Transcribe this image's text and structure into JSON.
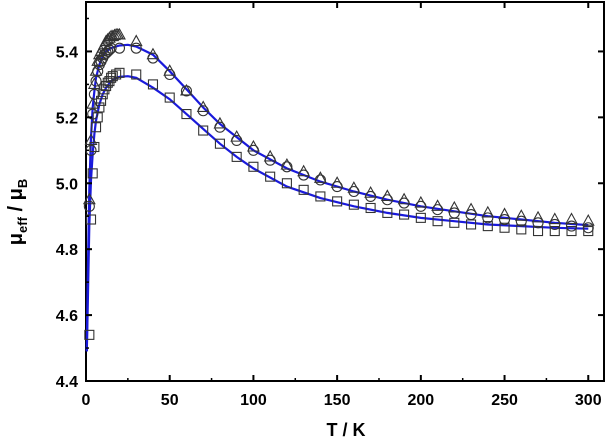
{
  "chart_data": {
    "type": "scatter",
    "title": "",
    "xlabel": "T / K",
    "ylabel": {
      "main": "μ",
      "sub1": "eff",
      "sep": " / μ",
      "sub2": "B"
    },
    "xlim": [
      0,
      310
    ],
    "ylim": [
      4.4,
      5.55
    ],
    "xticks": [
      0,
      50,
      100,
      150,
      200,
      250,
      300
    ],
    "yticks": [
      4.4,
      4.6,
      4.8,
      5.0,
      5.2,
      5.4
    ],
    "ytick_labels": [
      "4.4",
      "4.6",
      "4.8",
      "5.0",
      "5.2",
      "5.4"
    ],
    "grid": false,
    "legend": "none",
    "colors": {
      "fit": "#1a1adb",
      "markers": "#333333",
      "axes": "#000000"
    },
    "series": [
      {
        "marker": "triangle",
        "x": [
          2,
          3,
          4,
          5,
          6,
          7,
          8,
          9,
          10,
          11,
          12,
          13,
          14,
          15,
          16,
          17,
          18,
          19,
          20,
          30,
          40,
          50,
          60,
          70,
          80,
          90,
          100,
          110,
          120,
          130,
          140,
          150,
          160,
          170,
          180,
          190,
          200,
          210,
          220,
          230,
          240,
          250,
          260,
          270,
          280,
          290,
          300
        ],
        "y": [
          4.95,
          5.13,
          5.24,
          5.3,
          5.34,
          5.37,
          5.39,
          5.4,
          5.41,
          5.42,
          5.43,
          5.435,
          5.44,
          5.445,
          5.445,
          5.448,
          5.45,
          5.45,
          5.45,
          5.43,
          5.39,
          5.34,
          5.28,
          5.23,
          5.18,
          5.14,
          5.11,
          5.08,
          5.055,
          5.035,
          5.015,
          5.0,
          4.985,
          4.97,
          4.96,
          4.95,
          4.94,
          4.93,
          4.925,
          4.92,
          4.91,
          4.905,
          4.9,
          4.895,
          4.89,
          4.89,
          4.885
        ]
      },
      {
        "marker": "circle",
        "x": [
          2,
          3,
          4,
          5,
          6,
          7,
          8,
          9,
          10,
          11,
          12,
          13,
          14,
          15,
          20,
          30,
          40,
          50,
          60,
          70,
          80,
          90,
          100,
          110,
          120,
          130,
          140,
          150,
          160,
          170,
          180,
          190,
          200,
          210,
          220,
          230,
          240,
          250,
          260,
          270,
          280,
          290,
          300
        ],
        "y": [
          4.93,
          5.1,
          5.21,
          5.27,
          5.31,
          5.34,
          5.36,
          5.37,
          5.38,
          5.39,
          5.395,
          5.4,
          5.405,
          5.41,
          5.41,
          5.41,
          5.38,
          5.33,
          5.28,
          5.22,
          5.17,
          5.13,
          5.1,
          5.07,
          5.05,
          5.025,
          5.01,
          4.99,
          4.975,
          4.96,
          4.95,
          4.94,
          4.93,
          4.92,
          4.91,
          4.905,
          4.895,
          4.89,
          4.885,
          4.88,
          4.875,
          4.87,
          4.865
        ]
      },
      {
        "marker": "square",
        "x": [
          2,
          3,
          4,
          5,
          6,
          7,
          8,
          9,
          10,
          11,
          12,
          13,
          14,
          15,
          16,
          18,
          20,
          30,
          40,
          50,
          60,
          70,
          80,
          90,
          100,
          110,
          120,
          130,
          140,
          150,
          160,
          170,
          180,
          190,
          200,
          210,
          220,
          230,
          240,
          250,
          260,
          270,
          280,
          290,
          300
        ],
        "y": [
          4.54,
          4.89,
          5.03,
          5.11,
          5.17,
          5.2,
          5.23,
          5.25,
          5.27,
          5.285,
          5.295,
          5.305,
          5.31,
          5.32,
          5.325,
          5.33,
          5.335,
          5.33,
          5.3,
          5.26,
          5.21,
          5.16,
          5.12,
          5.08,
          5.05,
          5.02,
          5.0,
          4.98,
          4.96,
          4.945,
          4.935,
          4.925,
          4.91,
          4.905,
          4.895,
          4.885,
          4.88,
          4.875,
          4.87,
          4.865,
          4.86,
          4.855,
          4.855,
          4.855,
          4.855
        ]
      }
    ],
    "fits": [
      {
        "x": [
          0.5,
          1,
          2,
          3,
          4,
          5,
          6,
          8,
          10,
          12,
          15,
          18,
          20,
          25,
          30,
          40,
          50,
          60,
          70,
          80,
          90,
          100,
          120,
          140,
          160,
          180,
          200,
          220,
          240,
          260,
          280,
          300
        ],
        "y": [
          4.49,
          4.7,
          4.98,
          5.14,
          5.23,
          5.28,
          5.32,
          5.36,
          5.385,
          5.4,
          5.41,
          5.415,
          5.418,
          5.42,
          5.415,
          5.39,
          5.34,
          5.285,
          5.23,
          5.18,
          5.14,
          5.1,
          5.045,
          5.005,
          4.975,
          4.95,
          4.93,
          4.915,
          4.9,
          4.89,
          4.88,
          4.873
        ]
      },
      {
        "x": [
          0.5,
          1,
          2,
          3,
          4,
          5,
          6,
          8,
          10,
          12,
          15,
          18,
          20,
          25,
          30,
          40,
          50,
          60,
          70,
          80,
          90,
          100,
          120,
          140,
          160,
          180,
          200,
          220,
          240,
          260,
          280,
          300
        ],
        "y": [
          4.49,
          4.62,
          4.87,
          5.01,
          5.09,
          5.15,
          5.19,
          5.24,
          5.27,
          5.29,
          5.31,
          5.32,
          5.323,
          5.325,
          5.32,
          5.29,
          5.255,
          5.21,
          5.165,
          5.12,
          5.08,
          5.045,
          4.99,
          4.955,
          4.93,
          4.91,
          4.895,
          4.885,
          4.875,
          4.87,
          4.865,
          4.862
        ]
      }
    ]
  }
}
